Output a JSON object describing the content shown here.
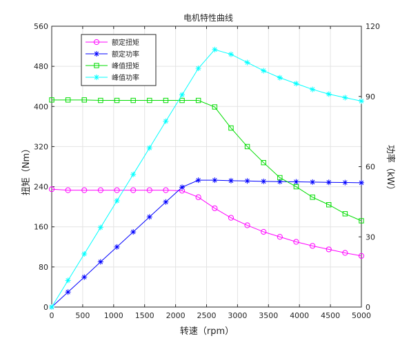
{
  "chart_data": {
    "type": "line",
    "title": "电机特性曲线",
    "xlabel": "转速（rpm）",
    "ylabel": "扭矩（Nm）",
    "y2label": "功率（kW）",
    "xlim": [
      0,
      5000
    ],
    "ylim": [
      0,
      560
    ],
    "y2lim": [
      0,
      120
    ],
    "xticks": [
      0,
      500,
      1000,
      1500,
      2000,
      2500,
      3000,
      3500,
      4000,
      4500,
      5000
    ],
    "yticks": [
      0,
      80,
      160,
      240,
      320,
      400,
      480,
      560
    ],
    "y2ticks": [
      0,
      30,
      60,
      90,
      120
    ],
    "grid": true,
    "legend_position": "top-left",
    "series": [
      {
        "name": "额定扭矩",
        "axis": "left",
        "color": "#ff00ff",
        "marker": "circle",
        "x": [
          0,
          263,
          526,
          789,
          1053,
          1316,
          1579,
          1842,
          2105,
          2368,
          2632,
          2895,
          3158,
          3421,
          3684,
          3947,
          4211,
          4474,
          4737,
          5000
        ],
        "y": [
          235,
          233,
          233,
          233,
          233,
          233,
          233,
          233,
          232,
          219,
          197,
          178,
          163,
          150,
          140,
          130,
          122,
          115,
          108,
          102
        ]
      },
      {
        "name": "额定功率",
        "axis": "right",
        "color": "#0000ff",
        "marker": "star",
        "x": [
          0,
          263,
          526,
          789,
          1053,
          1316,
          1579,
          1842,
          2105,
          2368,
          2632,
          2895,
          3158,
          3421,
          3684,
          3947,
          4211,
          4474,
          4737,
          5000
        ],
        "y": [
          0,
          6.4,
          12.8,
          19.3,
          25.7,
          32.1,
          38.5,
          44.9,
          51.2,
          54.2,
          54.2,
          54.0,
          53.9,
          53.7,
          53.6,
          53.5,
          53.4,
          53.3,
          53.2,
          53.1
        ]
      },
      {
        "name": "峰值扭矩",
        "axis": "left",
        "color": "#00dd00",
        "marker": "square",
        "x": [
          0,
          263,
          526,
          789,
          1053,
          1316,
          1579,
          1842,
          2105,
          2368,
          2632,
          2895,
          3158,
          3421,
          3684,
          3947,
          4211,
          4474,
          4737,
          5000
        ],
        "y": [
          413,
          413,
          413,
          412,
          412,
          412,
          412,
          412,
          412,
          412,
          399,
          357,
          320,
          288,
          258,
          240,
          219,
          204,
          186,
          172
        ]
      },
      {
        "name": "峰值功率",
        "axis": "right",
        "color": "#00ffff",
        "marker": "star",
        "x": [
          0,
          263,
          526,
          789,
          1053,
          1316,
          1579,
          1842,
          2105,
          2368,
          2632,
          2895,
          3158,
          3421,
          3684,
          3947,
          4211,
          4474,
          4737,
          5000
        ],
        "y": [
          0,
          11.4,
          22.7,
          34.0,
          45.4,
          56.7,
          68.0,
          79.4,
          90.7,
          102.0,
          110.0,
          108.0,
          104.5,
          101.0,
          98.0,
          95.5,
          93.0,
          91.0,
          89.5,
          88.0
        ]
      }
    ]
  }
}
